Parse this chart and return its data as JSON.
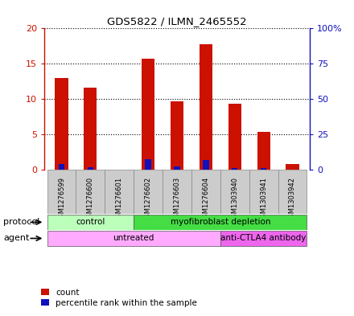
{
  "title": "GDS5822 / ILMN_2465552",
  "samples": [
    "GSM1276599",
    "GSM1276600",
    "GSM1276601",
    "GSM1276602",
    "GSM1276603",
    "GSM1276604",
    "GSM1303940",
    "GSM1303941",
    "GSM1303942"
  ],
  "counts": [
    13.0,
    11.6,
    0.05,
    15.7,
    9.7,
    17.8,
    9.3,
    5.4,
    0.8
  ],
  "percentiles": [
    4.2,
    1.9,
    0.05,
    7.8,
    2.4,
    7.2,
    1.3,
    1.3,
    0.05
  ],
  "ylim_left": [
    0,
    20
  ],
  "ylim_right": [
    0,
    100
  ],
  "yticks_left": [
    0,
    5,
    10,
    15,
    20
  ],
  "yticks_right": [
    0,
    25,
    50,
    75,
    100
  ],
  "ytick_labels_left": [
    "0",
    "5",
    "10",
    "15",
    "20"
  ],
  "ytick_labels_right": [
    "0",
    "25",
    "50",
    "75",
    "100%"
  ],
  "bar_color_count": "#cc1100",
  "bar_color_pct": "#1111bb",
  "bar_width": 0.45,
  "protocol_groups": [
    {
      "label": "control",
      "start": 0,
      "end": 3,
      "color": "#bbffbb"
    },
    {
      "label": "myofibroblast depletion",
      "start": 3,
      "end": 9,
      "color": "#44dd44"
    }
  ],
  "agent_groups": [
    {
      "label": "untreated",
      "start": 0,
      "end": 6,
      "color": "#ffaaff"
    },
    {
      "label": "anti-CTLA4 antibody",
      "start": 6,
      "end": 9,
      "color": "#ee66ee"
    }
  ],
  "legend_count_label": "count",
  "legend_pct_label": "percentile rank within the sample",
  "protocol_label": "protocol",
  "agent_label": "agent",
  "background_color": "#ffffff",
  "plot_bg_color": "#ffffff",
  "xtick_bg_color": "#cccccc",
  "xtick_border_color": "#999999"
}
